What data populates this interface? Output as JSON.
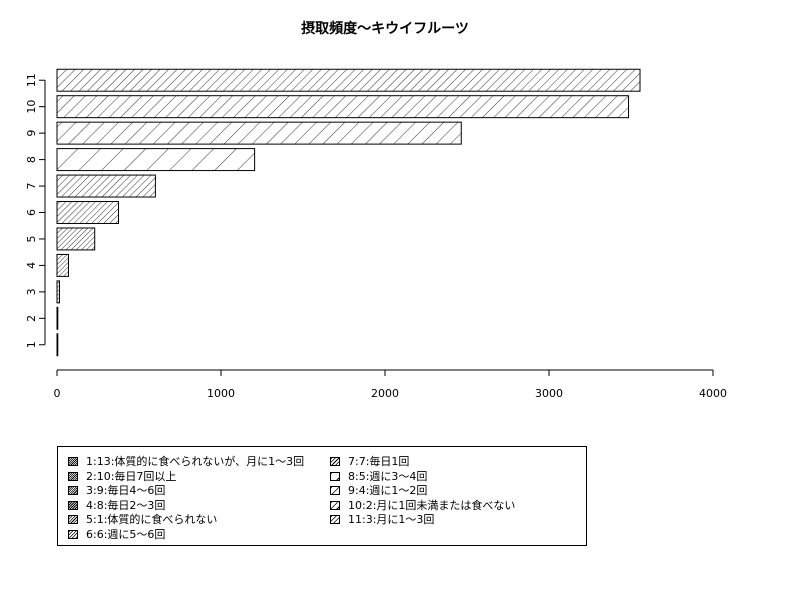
{
  "chart_data": {
    "type": "bar",
    "orientation": "horizontal",
    "title": "摂取頻度～キウイフルーツ",
    "xlabel": "",
    "ylabel": "",
    "xlim": [
      0,
      4000
    ],
    "x_ticks": [
      "0",
      "1000",
      "2000",
      "3000",
      "4000"
    ],
    "categories": [
      "1",
      "2",
      "3",
      "4",
      "5",
      "6",
      "7",
      "8",
      "9",
      "10",
      "11"
    ],
    "values": [
      2,
      5,
      15,
      70,
      230,
      375,
      600,
      1205,
      2465,
      3485,
      3555
    ],
    "bar_fill": "hatched",
    "grid": false,
    "legend_position": "bottom",
    "legend": [
      "1:13:体質的に食べられないが、月に1～3回",
      "2:10:毎日7回以上",
      "3:9:毎日4～6回",
      "4:8:毎日2～3回",
      "5:1:体質的に食べられない",
      "6:6:週に5～6回",
      "7:7:毎日1回",
      "8:5:週に3～4回",
      "9:4:週に1～2回",
      "10:2:月に1回未満または食べない",
      "11:3:月に1～3回"
    ]
  }
}
